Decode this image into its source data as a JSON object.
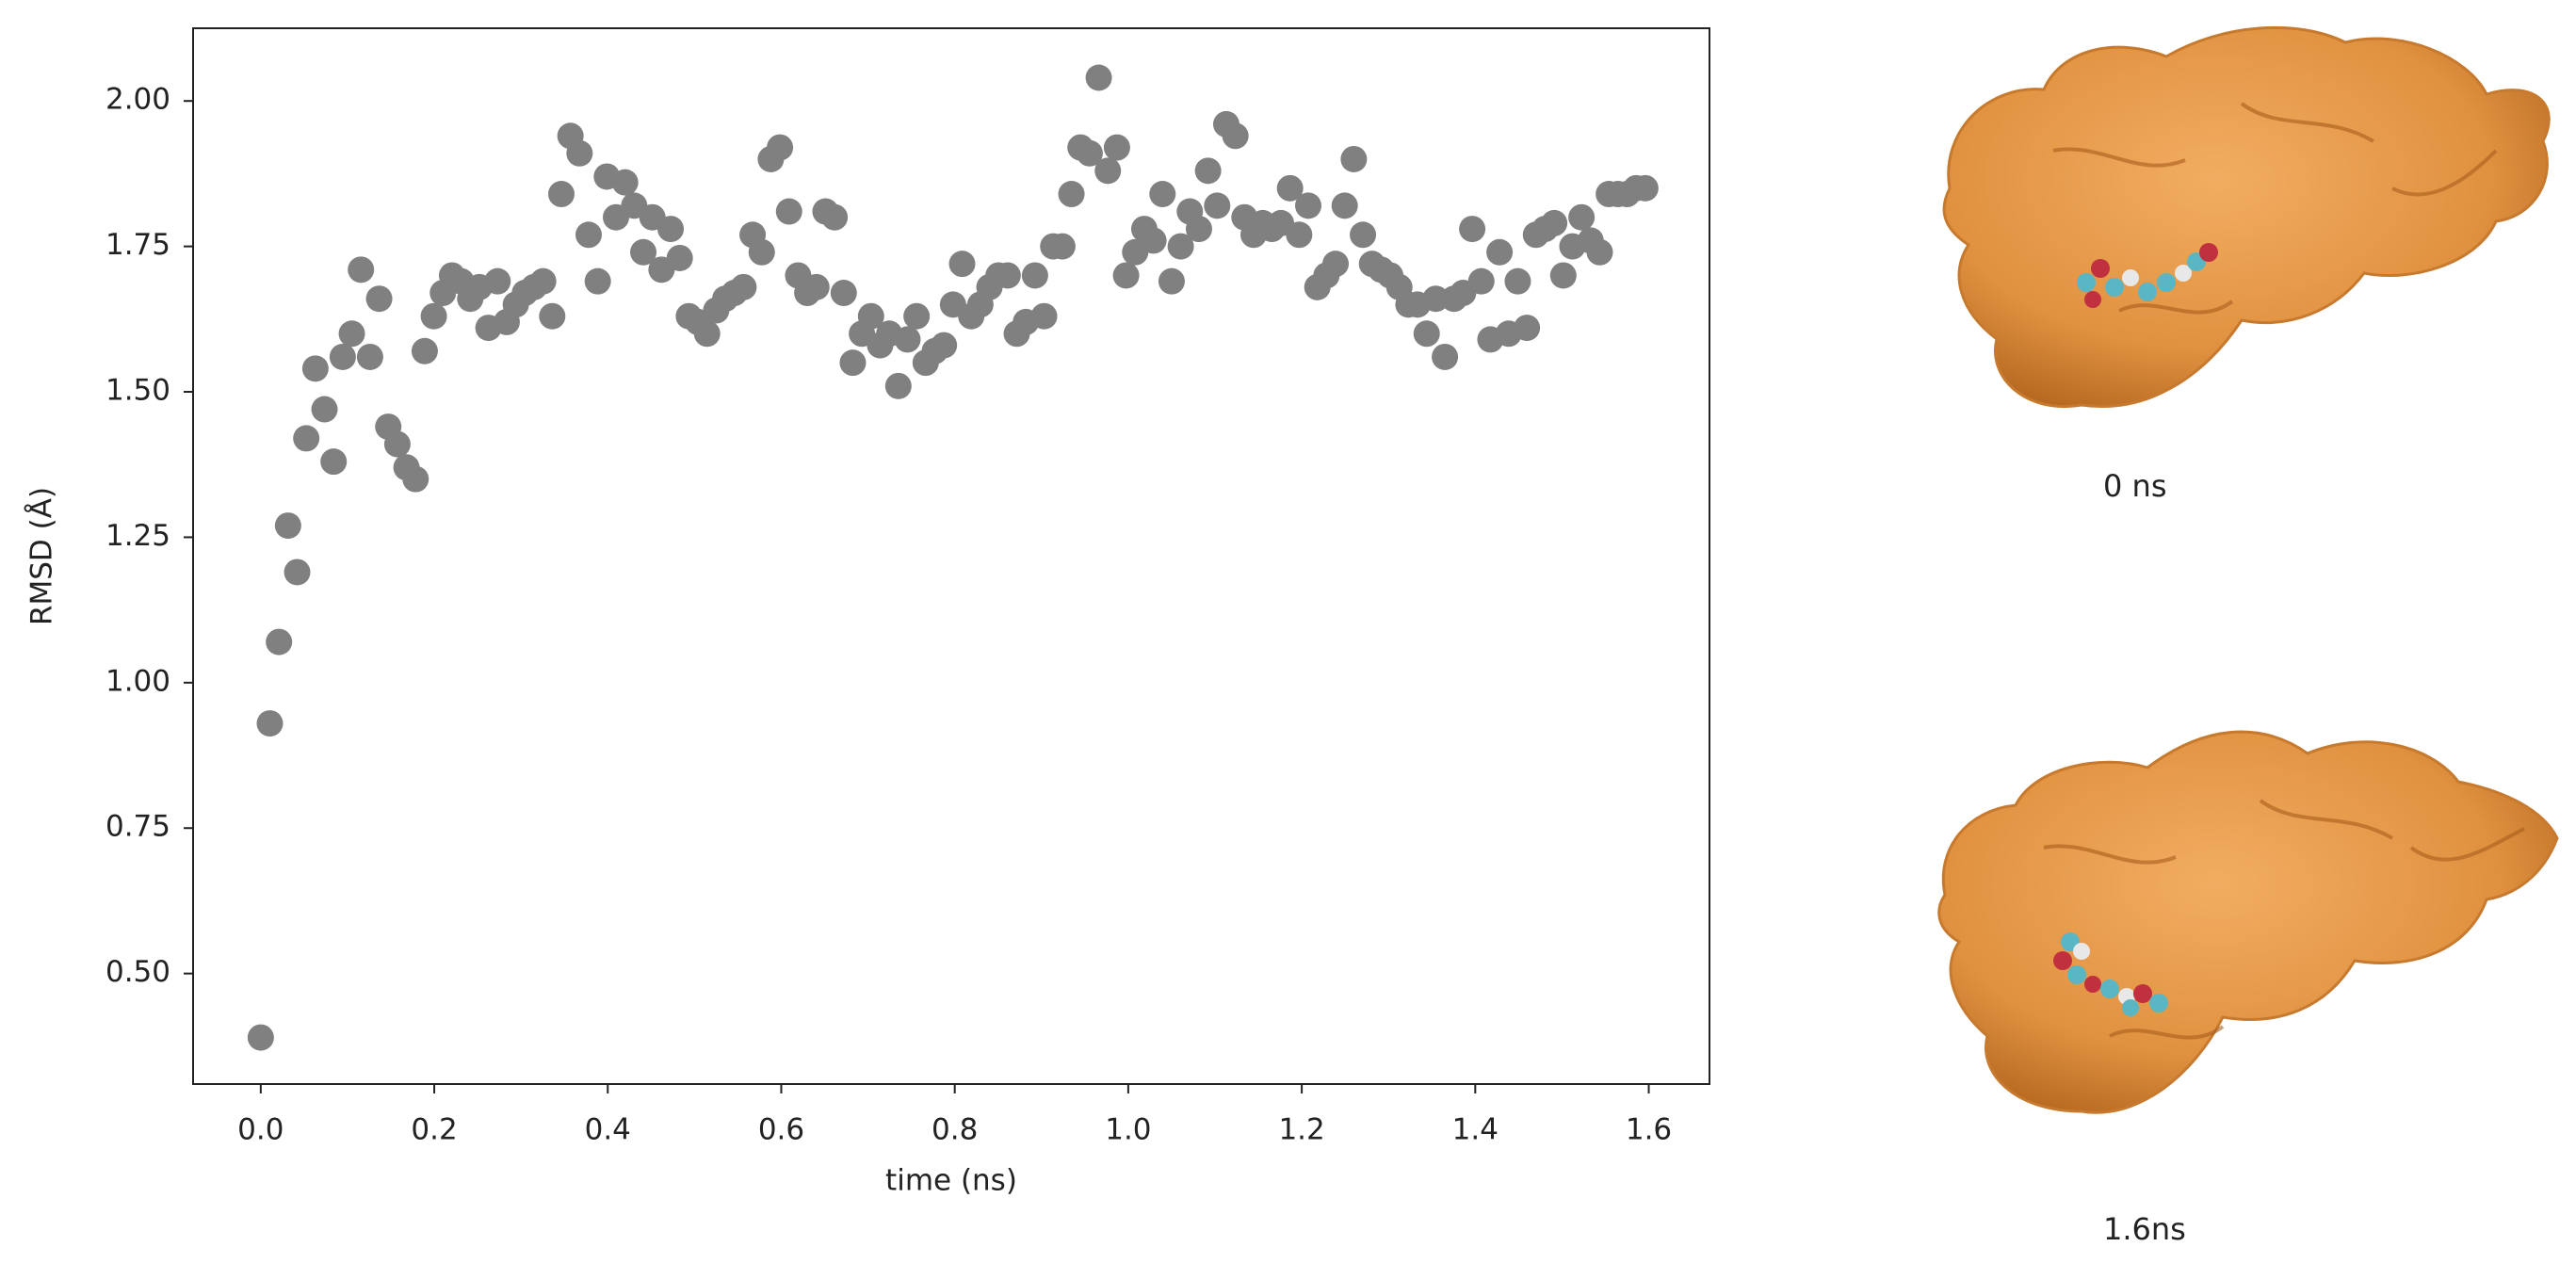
{
  "chart_data": {
    "type": "scatter",
    "xlabel": "time (ns)",
    "ylabel": "RMSD (Å)",
    "xlim": [
      -0.078,
      1.67
    ],
    "ylim": [
      0.31,
      2.125
    ],
    "xticks": [
      {
        "value": 0,
        "label": "0.0"
      },
      0.2,
      0.4,
      0.6,
      0.8,
      {
        "value": 1,
        "label": "1.0"
      },
      1.2,
      1.4,
      1.6
    ],
    "yticks": [
      {
        "value": 0.5,
        "label": "0.50"
      },
      0.75,
      {
        "value": 1,
        "label": "1.00"
      },
      1.25,
      {
        "value": 1.5,
        "label": "1.50"
      },
      1.75,
      {
        "value": 2,
        "label": "2.00"
      }
    ],
    "grid": false,
    "x": [
      0,
      0.0105,
      0.021,
      0.0315,
      0.042,
      0.0525,
      0.063,
      0.0735,
      0.084,
      0.0945,
      0.105,
      0.1155,
      0.126,
      0.1365,
      0.147,
      0.1575,
      0.168,
      0.1785,
      0.189,
      0.1995,
      0.21,
      0.2205,
      0.231,
      0.2415,
      0.252,
      0.2625,
      0.273,
      0.2835,
      0.294,
      0.3045,
      0.315,
      0.3255,
      0.336,
      0.3465,
      0.357,
      0.3675,
      0.378,
      0.3885,
      0.399,
      0.4095,
      0.42,
      0.4305,
      0.441,
      0.4515,
      0.462,
      0.4725,
      0.483,
      0.4935,
      0.504,
      0.5145,
      0.525,
      0.5355,
      0.546,
      0.5565,
      0.567,
      0.5775,
      0.588,
      0.5985,
      0.609,
      0.6195,
      0.63,
      0.6405,
      0.651,
      0.6615,
      0.672,
      0.6825,
      0.693,
      0.7035,
      0.714,
      0.7245,
      0.735,
      0.7455,
      0.756,
      0.7665,
      0.777,
      0.7875,
      0.798,
      0.8085,
      0.819,
      0.8295,
      0.84,
      0.8505,
      0.861,
      0.8715,
      0.882,
      0.8925,
      0.903,
      0.9135,
      0.924,
      0.9345,
      0.945,
      0.9555,
      0.966,
      0.9765,
      0.987,
      0.9975,
      1.008,
      1.0185,
      1.029,
      1.0395,
      1.05,
      1.0605,
      1.071,
      1.0815,
      1.092,
      1.1025,
      1.113,
      1.1235,
      1.134,
      1.1445,
      1.155,
      1.1655,
      1.176,
      1.1865,
      1.197,
      1.2075,
      1.218,
      1.2285,
      1.239,
      1.2495,
      1.26,
      1.2705,
      1.281,
      1.2915,
      1.302,
      1.3125,
      1.323,
      1.3335,
      1.344,
      1.3545,
      1.365,
      1.3755,
      1.386,
      1.3965,
      1.407,
      1.4175,
      1.428,
      1.4385,
      1.449,
      1.4595,
      1.47,
      1.4805,
      1.491,
      1.5015,
      1.512,
      1.5225,
      1.533,
      1.5435,
      1.554,
      1.5645,
      1.575,
      1.5855,
      1.596
    ],
    "series": [
      {
        "color": "#808080",
        "values": [
          0.39,
          0.93,
          1.07,
          1.27,
          1.19,
          1.42,
          1.54,
          1.47,
          1.38,
          1.56,
          1.6,
          1.71,
          1.56,
          1.66,
          1.44,
          1.41,
          1.37,
          1.35,
          1.57,
          1.63,
          1.67,
          1.7,
          1.69,
          1.66,
          1.68,
          1.61,
          1.69,
          1.62,
          1.65,
          1.67,
          1.68,
          1.69,
          1.63,
          1.84,
          1.94,
          1.91,
          1.77,
          1.69,
          1.87,
          1.8,
          1.86,
          1.82,
          1.74,
          1.8,
          1.71,
          1.78,
          1.73,
          1.63,
          1.62,
          1.6,
          1.64,
          1.66,
          1.67,
          1.68,
          1.77,
          1.74,
          1.9,
          1.92,
          1.81,
          1.7,
          1.67,
          1.68,
          1.81,
          1.8,
          1.67,
          1.55,
          1.6,
          1.63,
          1.58,
          1.6,
          1.51,
          1.59,
          1.63,
          1.55,
          1.57,
          1.58,
          1.65,
          1.72,
          1.63,
          1.65,
          1.68,
          1.7,
          1.7,
          1.6,
          1.62,
          1.7,
          1.63,
          1.75,
          1.75,
          1.84,
          1.92,
          1.91,
          2.04,
          1.88,
          1.92,
          1.7,
          1.74,
          1.78,
          1.76,
          1.84,
          1.69,
          1.75,
          1.81,
          1.78,
          1.88,
          1.82,
          1.96,
          1.94,
          1.8,
          1.77,
          1.79,
          1.78,
          1.79,
          1.85,
          1.77,
          1.82,
          1.68,
          1.7,
          1.72,
          1.82,
          1.9,
          1.77,
          1.72,
          1.71,
          1.7,
          1.68,
          1.65,
          1.65,
          1.6,
          1.66,
          1.56,
          1.66,
          1.67,
          1.78,
          1.69,
          1.59,
          1.74,
          1.6,
          1.69,
          1.61,
          1.77,
          1.78,
          1.79,
          1.7,
          1.75,
          1.8,
          1.76,
          1.74,
          1.84,
          1.84,
          1.84,
          1.85,
          1.85
        ]
      }
    ]
  },
  "images": [
    {
      "caption": "0 ns"
    },
    {
      "caption": "1.6ns"
    }
  ]
}
